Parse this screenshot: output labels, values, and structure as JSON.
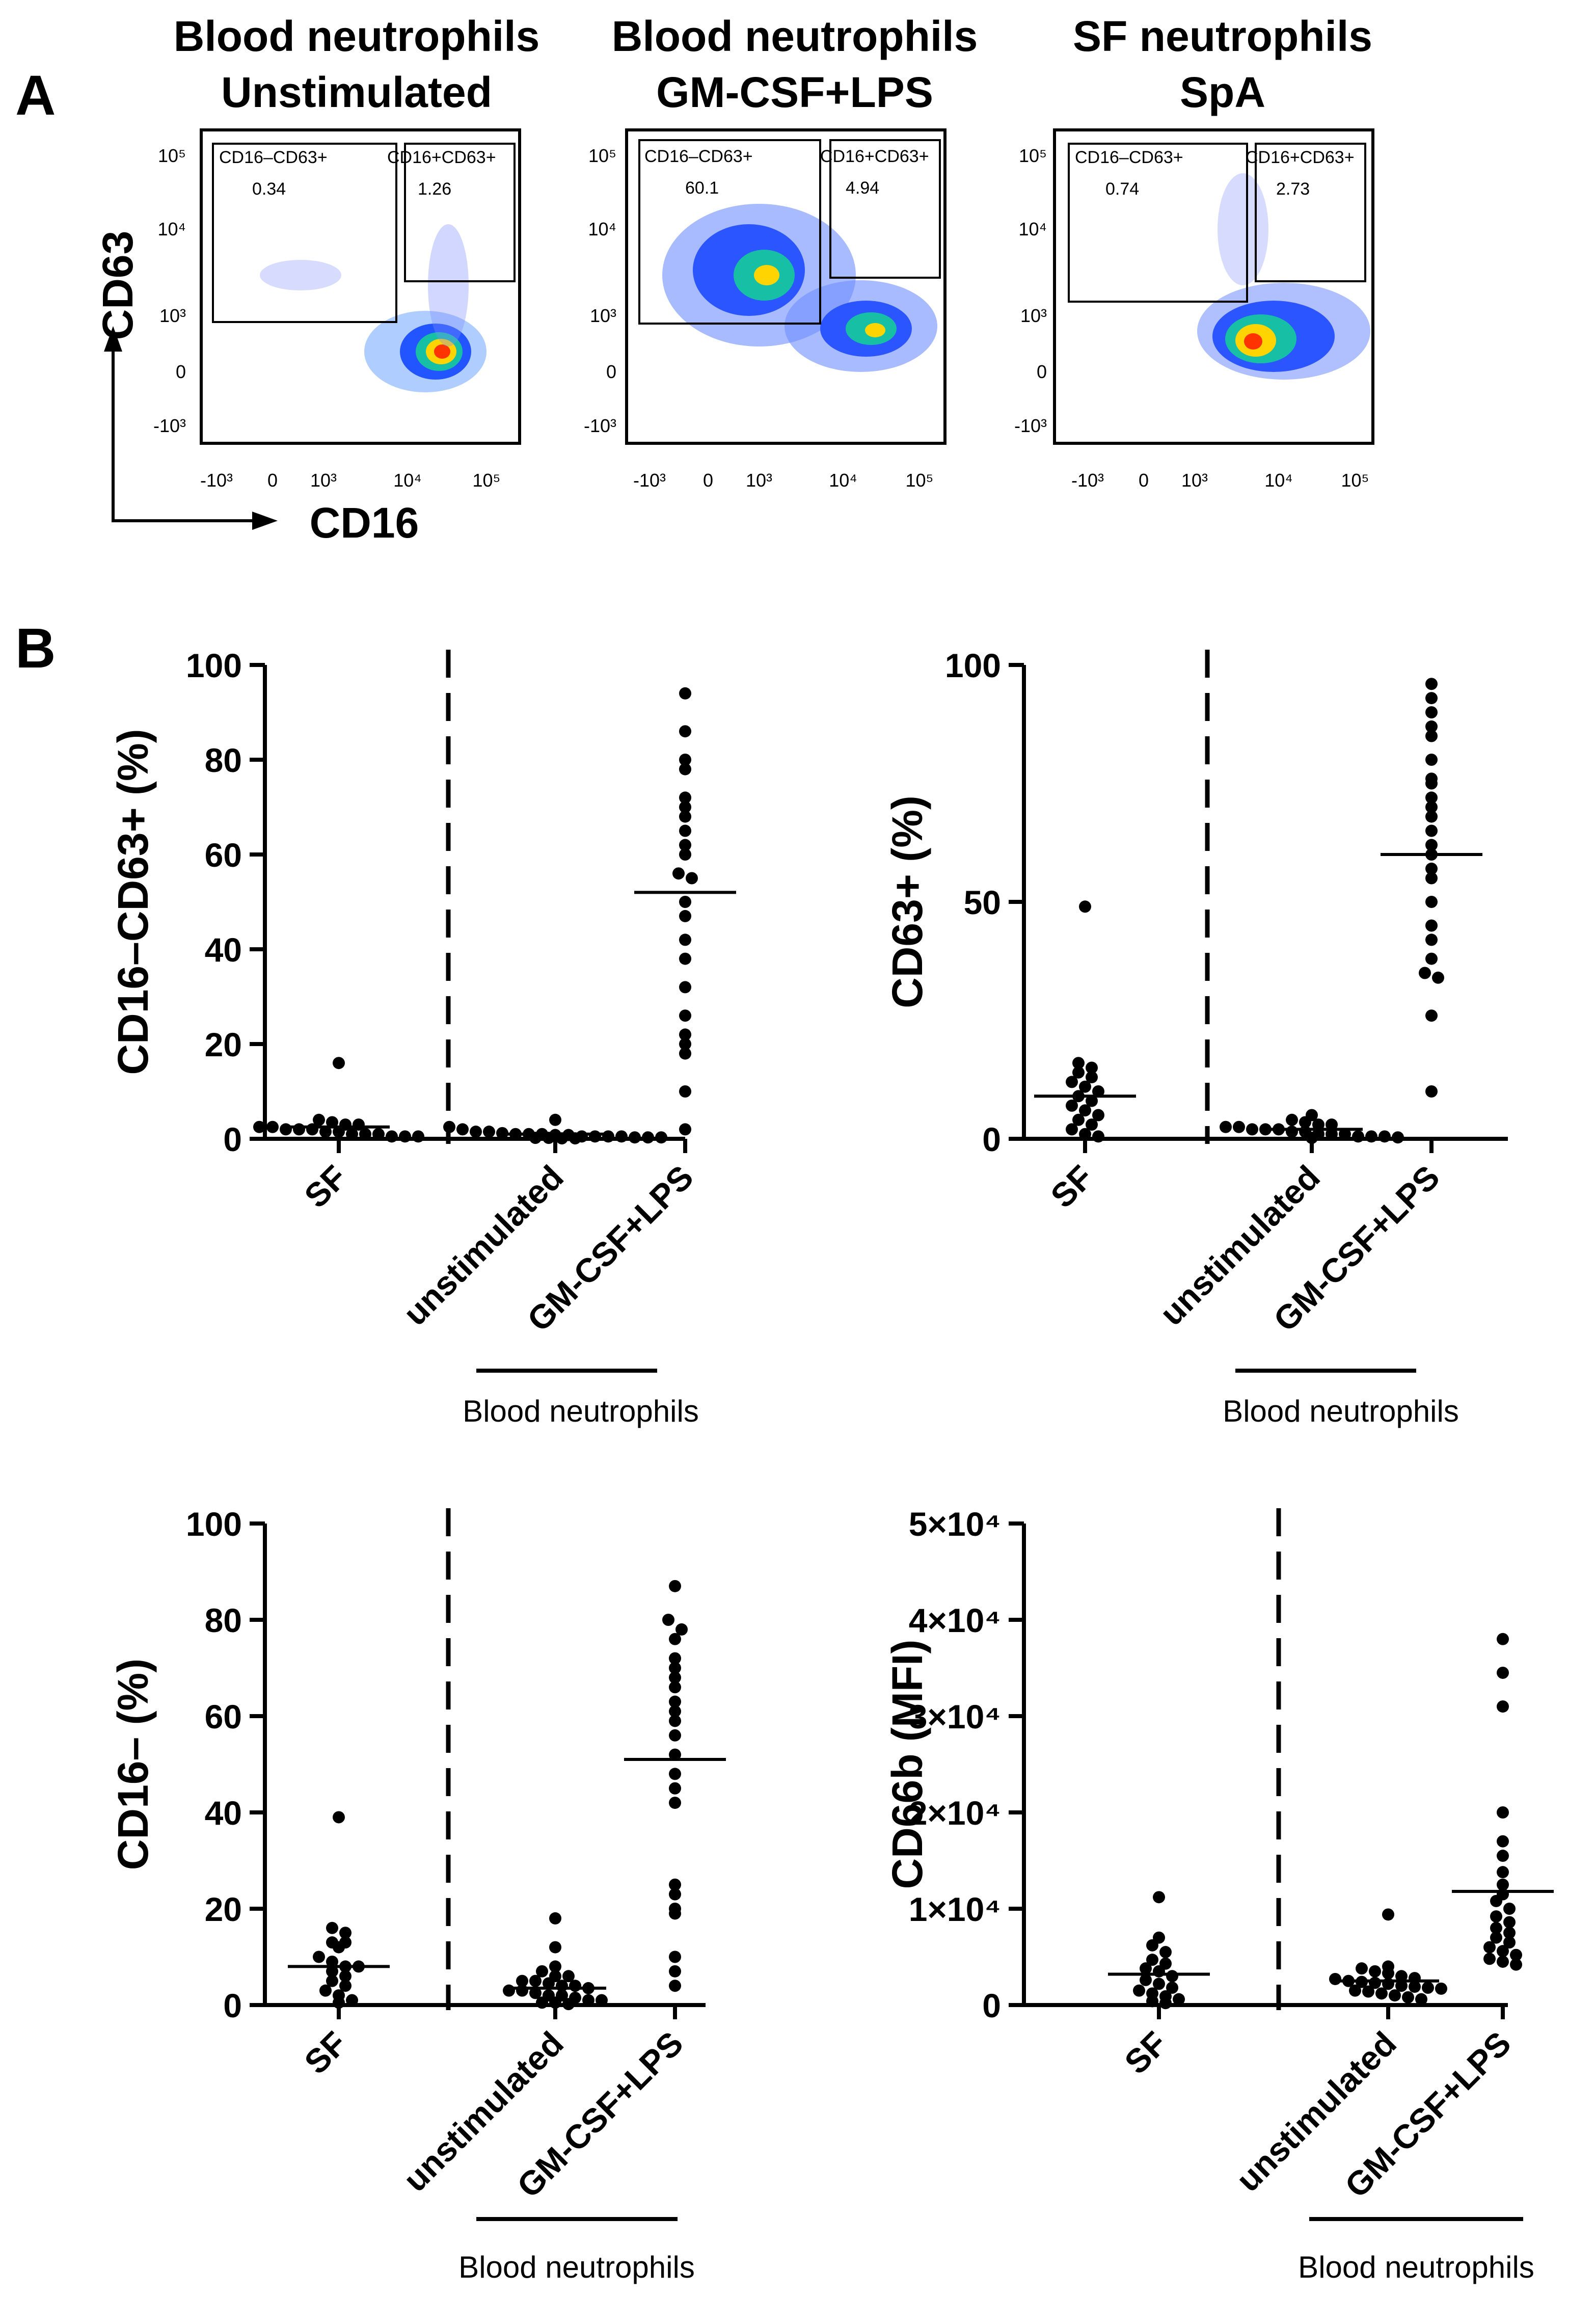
{
  "panel_labels": {
    "a": "A",
    "b": "B"
  },
  "flow_axes": {
    "y_label": "CD63",
    "x_label": "CD16"
  },
  "flow_ticks": {
    "y": [
      "10⁵",
      "10⁴",
      "10³",
      "0",
      "-10³"
    ],
    "x": [
      "-10³",
      "0",
      "10³",
      "10⁴",
      "10⁵"
    ]
  },
  "colors": {
    "density_low": "#0000ff",
    "density_mid": "#00cc88",
    "density_high": "#ff3300",
    "points": "#000000",
    "axes": "#000000"
  },
  "flow_plots": [
    {
      "title_line1": "Blood neutrophils",
      "title_line2": "Unstimulated",
      "gate_left_label": "CD16–CD63+",
      "gate_left_value": "0.34",
      "gate_right_label": "CD16+CD63+",
      "gate_right_value": "1.26"
    },
    {
      "title_line1": "Blood neutrophils",
      "title_line2": "GM-CSF+LPS",
      "gate_left_label": "CD16–CD63+",
      "gate_left_value": "60.1",
      "gate_right_label": "CD16+CD63+",
      "gate_right_value": "4.94"
    },
    {
      "title_line1": "SF neutrophils",
      "title_line2": "SpA",
      "gate_left_label": "CD16–CD63+",
      "gate_left_value": "0.74",
      "gate_right_label": "CD16+CD63+",
      "gate_right_value": "2.73"
    }
  ],
  "chart_data": [
    {
      "type": "scatter",
      "subtype": "dot-plot-with-mean",
      "ylabel": "CD16–CD63+ (%)",
      "ylim": [
        0,
        100
      ],
      "yticks": [
        0,
        20,
        40,
        60,
        80,
        100
      ],
      "ytick_labels": [
        "0",
        "20",
        "40",
        "60",
        "80",
        "100"
      ],
      "categories": [
        "SF",
        "unstimulated",
        "GM-CSF+LPS"
      ],
      "group_label": "Blood neutrophils",
      "series": [
        {
          "name": "SF",
          "mean": 2.5,
          "values": [
            16,
            4,
            3.5,
            3,
            3,
            2.5,
            2.5,
            2,
            2,
            2,
            1.5,
            1.5,
            1,
            1,
            1,
            0.5,
            0.5,
            0.5
          ]
        },
        {
          "name": "unstimulated",
          "mean": 1,
          "values": [
            4,
            2.5,
            2,
            1.5,
            1.5,
            1.2,
            1,
            1,
            1,
            0.8,
            0.8,
            0.5,
            0.5,
            0.5,
            0.5,
            0.3,
            0.3,
            0.3,
            0.2,
            0.2,
            0.1,
            0.1
          ]
        },
        {
          "name": "GM-CSF+LPS",
          "mean": 52,
          "values": [
            94,
            86,
            80,
            78,
            72,
            70,
            68,
            65,
            62,
            60,
            56,
            55,
            50,
            47,
            42,
            38,
            32,
            26,
            22,
            20,
            18,
            10,
            2
          ]
        }
      ]
    },
    {
      "type": "scatter",
      "subtype": "dot-plot-with-mean",
      "ylabel": "CD63+ (%)",
      "ylim": [
        0,
        100
      ],
      "yticks": [
        0,
        50,
        100
      ],
      "ytick_labels": [
        "0",
        "50",
        "100"
      ],
      "categories": [
        "SF",
        "unstimulated",
        "GM-CSF+LPS"
      ],
      "group_label": "Blood neutrophils",
      "series": [
        {
          "name": "SF",
          "mean": 9,
          "values": [
            49,
            16,
            15,
            14,
            13,
            12,
            11,
            10,
            9,
            8,
            7,
            6,
            5,
            4,
            3,
            2,
            1,
            0.5
          ]
        },
        {
          "name": "unstimulated",
          "mean": 2,
          "values": [
            5,
            4,
            3.5,
            3,
            3,
            2.5,
            2.5,
            2,
            2,
            2,
            1.5,
            1.5,
            1,
            1,
            1,
            0.5,
            0.5,
            0.5,
            0.3,
            0.2
          ]
        },
        {
          "name": "GM-CSF+LPS",
          "mean": 60,
          "values": [
            96,
            93,
            90,
            87,
            85,
            80,
            76,
            75,
            72,
            70,
            68,
            65,
            62,
            60,
            57,
            55,
            50,
            45,
            42,
            38,
            35,
            34,
            26,
            10
          ]
        }
      ]
    },
    {
      "type": "scatter",
      "subtype": "dot-plot-with-mean",
      "ylabel": "CD16– (%)",
      "ylim": [
        0,
        100
      ],
      "yticks": [
        0,
        20,
        40,
        60,
        80,
        100
      ],
      "ytick_labels": [
        "0",
        "20",
        "40",
        "60",
        "80",
        "100"
      ],
      "categories": [
        "SF",
        "unstimulated",
        "GM-CSF+LPS"
      ],
      "group_label": "Blood neutrophils",
      "series": [
        {
          "name": "SF",
          "mean": 8,
          "values": [
            39,
            16,
            15,
            13,
            13,
            12,
            10,
            9,
            8,
            8,
            7,
            6,
            5,
            4,
            3,
            2,
            1,
            0.5
          ]
        },
        {
          "name": "unstimulated",
          "mean": 3.5,
          "values": [
            18,
            12,
            8,
            7,
            6,
            6,
            5,
            5,
            4.5,
            4,
            4,
            3.5,
            3,
            3,
            2.5,
            2,
            2,
            1.5,
            1,
            1,
            0.5,
            0.5,
            0.2
          ]
        },
        {
          "name": "GM-CSF+LPS",
          "mean": 51,
          "values": [
            87,
            80,
            78,
            76,
            72,
            70,
            68,
            66,
            63,
            61,
            59,
            56,
            52,
            48,
            45,
            42,
            25,
            23,
            20,
            19,
            10,
            7,
            4
          ]
        }
      ]
    },
    {
      "type": "scatter",
      "subtype": "dot-plot-with-mean",
      "ylabel": "CD66b (MFI)",
      "ylim": [
        0,
        50000
      ],
      "yticks": [
        0,
        10000,
        20000,
        30000,
        40000,
        50000
      ],
      "ytick_labels": [
        "0",
        "1×10⁴",
        "2×10⁴",
        "3×10⁴",
        "4×10⁴",
        "5×10⁴"
      ],
      "categories": [
        "SF",
        "unstimulated",
        "GM-CSF+LPS"
      ],
      "group_label": "Blood neutrophils",
      "series": [
        {
          "name": "SF",
          "mean": 3200,
          "values": [
            11200,
            7000,
            6200,
            5500,
            4700,
            4300,
            3800,
            3500,
            3000,
            2600,
            2200,
            1800,
            1500,
            1200,
            900,
            600,
            400,
            200
          ]
        },
        {
          "name": "unstimulated",
          "mean": 2500,
          "values": [
            9400,
            4000,
            3800,
            3500,
            3300,
            3000,
            2800,
            2700,
            2500,
            2400,
            2300,
            2200,
            2000,
            1900,
            1800,
            1700,
            1500,
            1400,
            1200,
            1000,
            800,
            600
          ]
        },
        {
          "name": "GM-CSF+LPS",
          "mean": 11800,
          "values": [
            38000,
            34500,
            31000,
            20000,
            17000,
            15500,
            13800,
            12500,
            11500,
            10800,
            10000,
            9200,
            8600,
            8000,
            7500,
            7000,
            6500,
            6000,
            5600,
            5200,
            4800,
            4500,
            4200
          ]
        }
      ]
    }
  ]
}
